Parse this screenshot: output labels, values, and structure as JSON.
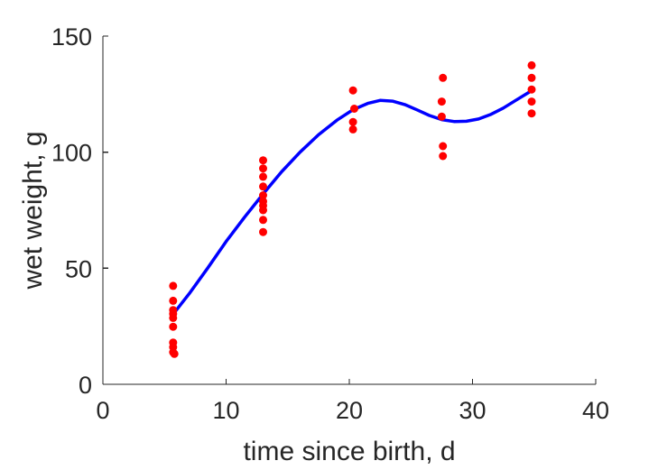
{
  "chart_data": {
    "type": "scatter",
    "title": "",
    "xlabel": "time since birth, d",
    "ylabel": "wet weight, g",
    "xlim": [
      0,
      40
    ],
    "ylim": [
      0,
      150
    ],
    "xticks": [
      0,
      10,
      20,
      30,
      40
    ],
    "yticks": [
      0,
      50,
      100,
      150
    ],
    "xtick_labels": [
      "0",
      "10",
      "20",
      "30",
      "40"
    ],
    "ytick_labels": [
      "0",
      "50",
      "100",
      "150"
    ],
    "grid": false,
    "legend": "none",
    "series": [
      {
        "type": "scatter",
        "color": "#ff0000",
        "points": [
          [
            5.7,
            42.4
          ],
          [
            5.7,
            36.0
          ],
          [
            5.7,
            32.0
          ],
          [
            5.7,
            30.3
          ],
          [
            5.7,
            28.6
          ],
          [
            5.7,
            24.8
          ],
          [
            5.7,
            18.0
          ],
          [
            5.7,
            16.0
          ],
          [
            5.7,
            13.8
          ],
          [
            5.8,
            13.1
          ],
          [
            13.0,
            96.5
          ],
          [
            13.0,
            93.0
          ],
          [
            13.0,
            89.4
          ],
          [
            13.0,
            85.2
          ],
          [
            13.0,
            81.4
          ],
          [
            13.0,
            78.8
          ],
          [
            13.0,
            77.0
          ],
          [
            13.0,
            75.0
          ],
          [
            13.0,
            70.8
          ],
          [
            13.0,
            65.6
          ],
          [
            20.3,
            126.6
          ],
          [
            20.4,
            118.7
          ],
          [
            20.3,
            113.0
          ],
          [
            20.3,
            109.8
          ],
          [
            27.6,
            132.0
          ],
          [
            27.5,
            121.8
          ],
          [
            27.5,
            115.3
          ],
          [
            27.6,
            102.6
          ],
          [
            27.6,
            98.3
          ],
          [
            34.8,
            137.4
          ],
          [
            34.8,
            132.0
          ],
          [
            34.8,
            127.0
          ],
          [
            34.8,
            121.8
          ],
          [
            34.8,
            116.7
          ]
        ]
      },
      {
        "type": "line",
        "color": "#0000ff",
        "points": [
          [
            5.7,
            30.2
          ],
          [
            7.0,
            39.0
          ],
          [
            8.5,
            50.0
          ],
          [
            10.0,
            61.5
          ],
          [
            11.5,
            72.0
          ],
          [
            13.0,
            82.0
          ],
          [
            14.5,
            91.5
          ],
          [
            16.0,
            100.0
          ],
          [
            17.5,
            107.5
          ],
          [
            19.0,
            113.8
          ],
          [
            20.3,
            118.3
          ],
          [
            21.5,
            121.0
          ],
          [
            22.5,
            122.3
          ],
          [
            23.5,
            122.0
          ],
          [
            24.5,
            120.5
          ],
          [
            25.5,
            118.2
          ],
          [
            26.5,
            115.8
          ],
          [
            27.5,
            114.0
          ],
          [
            28.5,
            113.2
          ],
          [
            29.5,
            113.3
          ],
          [
            30.5,
            114.3
          ],
          [
            31.5,
            116.3
          ],
          [
            32.5,
            119.0
          ],
          [
            33.5,
            122.3
          ],
          [
            34.8,
            126.5
          ]
        ]
      }
    ]
  }
}
